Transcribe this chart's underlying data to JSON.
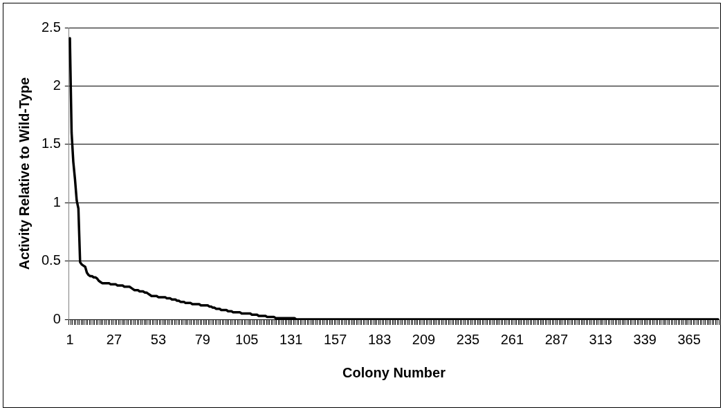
{
  "chart_data": {
    "type": "line",
    "xlabel": "Colony Number",
    "ylabel": "Activity Relative to Wild-Type",
    "ylim": [
      0,
      2.5
    ],
    "yticks": [
      0,
      0.5,
      1,
      1.5,
      2,
      2.5
    ],
    "grid": "y",
    "marker": "none",
    "line_style": "solid",
    "categories": [
      "1",
      null,
      null,
      null,
      null,
      null,
      null,
      null,
      null,
      null,
      null,
      null,
      null,
      null,
      null,
      null,
      null,
      null,
      null,
      null,
      null,
      null,
      null,
      null,
      null,
      null,
      "27",
      null,
      null,
      null,
      null,
      null,
      null,
      null,
      null,
      null,
      null,
      null,
      null,
      null,
      null,
      null,
      null,
      null,
      null,
      null,
      null,
      null,
      null,
      null,
      null,
      null,
      "53",
      null,
      null,
      null,
      null,
      null,
      null,
      null,
      null,
      null,
      null,
      null,
      null,
      null,
      null,
      null,
      null,
      null,
      null,
      null,
      null,
      null,
      null,
      null,
      null,
      null,
      "79",
      null,
      null,
      null,
      null,
      null,
      null,
      null,
      null,
      null,
      null,
      null,
      null,
      null,
      null,
      null,
      null,
      null,
      null,
      null,
      null,
      null,
      null,
      null,
      null,
      null,
      "105",
      null,
      null,
      null,
      null,
      null,
      null,
      null,
      null,
      null,
      null,
      null,
      null,
      null,
      null,
      null,
      null,
      null,
      null,
      null,
      null,
      null,
      null,
      null,
      null,
      null,
      "131",
      null,
      null,
      null,
      null,
      null,
      null,
      null,
      null,
      null,
      null,
      null,
      null,
      null,
      null,
      null,
      null,
      null,
      null,
      null,
      null,
      null,
      null,
      null,
      null,
      null,
      "157",
      null,
      null,
      null,
      null,
      null,
      null,
      null,
      null,
      null,
      null,
      null,
      null,
      null,
      null,
      null,
      null,
      null,
      null,
      null,
      null,
      null,
      null,
      null,
      null,
      null,
      "183",
      null,
      null,
      null,
      null,
      null,
      null,
      null,
      null,
      null,
      null,
      null,
      null,
      null,
      null,
      null,
      null,
      null,
      null,
      null,
      null,
      null,
      null,
      null,
      null,
      null,
      "209",
      null,
      null,
      null,
      null,
      null,
      null,
      null,
      null,
      null,
      null,
      null,
      null,
      null,
      null,
      null,
      null,
      null,
      null,
      null,
      null,
      null,
      null,
      null,
      null,
      null,
      "235",
      null,
      null,
      null,
      null,
      null,
      null,
      null,
      null,
      null,
      null,
      null,
      null,
      null,
      null,
      null,
      null,
      null,
      null,
      null,
      null,
      null,
      null,
      null,
      null,
      null,
      "261",
      null,
      null,
      null,
      null,
      null,
      null,
      null,
      null,
      null,
      null,
      null,
      null,
      null,
      null,
      null,
      null,
      null,
      null,
      null,
      null,
      null,
      null,
      null,
      null,
      null,
      "287",
      null,
      null,
      null,
      null,
      null,
      null,
      null,
      null,
      null,
      null,
      null,
      null,
      null,
      null,
      null,
      null,
      null,
      null,
      null,
      null,
      null,
      null,
      null,
      null,
      null,
      "313",
      null,
      null,
      null,
      null,
      null,
      null,
      null,
      null,
      null,
      null,
      null,
      null,
      null,
      null,
      null,
      null,
      null,
      null,
      null,
      null,
      null,
      null,
      null,
      null,
      null,
      "339",
      null,
      null,
      null,
      null,
      null,
      null,
      null,
      null,
      null,
      null,
      null,
      null,
      null,
      null,
      null,
      null,
      null,
      null,
      null,
      null,
      null,
      null,
      null,
      null,
      null,
      "365",
      null,
      null,
      null,
      null,
      null,
      null,
      null,
      null,
      null,
      null,
      null,
      null,
      null,
      null,
      null,
      null,
      null
    ],
    "series": [
      {
        "color": "#000000",
        "values": [
          2.41,
          1.6,
          1.35,
          1.2,
          1.02,
          0.95,
          0.49,
          0.47,
          0.46,
          0.45,
          0.4,
          0.38,
          0.37,
          0.37,
          0.36,
          0.36,
          0.35,
          0.33,
          0.32,
          0.31,
          0.31,
          0.31,
          0.31,
          0.31,
          0.3,
          0.3,
          0.3,
          0.3,
          0.29,
          0.29,
          0.29,
          0.29,
          0.28,
          0.28,
          0.28,
          0.28,
          0.27,
          0.26,
          0.25,
          0.25,
          0.25,
          0.24,
          0.24,
          0.24,
          0.23,
          0.23,
          0.22,
          0.21,
          0.2,
          0.2,
          0.2,
          0.2,
          0.19,
          0.19,
          0.19,
          0.19,
          0.19,
          0.18,
          0.18,
          0.18,
          0.17,
          0.17,
          0.17,
          0.16,
          0.16,
          0.15,
          0.15,
          0.15,
          0.14,
          0.14,
          0.14,
          0.14,
          0.13,
          0.13,
          0.13,
          0.13,
          0.13,
          0.12,
          0.12,
          0.12,
          0.12,
          0.12,
          0.11,
          0.11,
          0.1,
          0.1,
          0.09,
          0.09,
          0.09,
          0.08,
          0.08,
          0.08,
          0.08,
          0.07,
          0.07,
          0.07,
          0.06,
          0.06,
          0.06,
          0.06,
          0.06,
          0.05,
          0.05,
          0.05,
          0.05,
          0.05,
          0.05,
          0.04,
          0.04,
          0.04,
          0.04,
          0.03,
          0.03,
          0.03,
          0.03,
          0.03,
          0.02,
          0.02,
          0.02,
          0.02,
          0.02,
          0.01,
          0.01,
          0.01,
          0.01,
          0.01,
          0.01,
          0.01,
          0.01,
          0.01,
          0.01,
          0.01,
          0.01,
          0,
          0,
          0,
          0,
          0,
          0,
          0,
          0,
          0,
          0,
          0,
          0,
          0,
          0,
          0,
          0,
          0,
          0,
          0,
          0,
          0,
          0,
          0,
          0,
          0,
          0,
          0,
          0,
          0,
          0,
          0,
          0,
          0,
          0,
          0,
          0,
          0,
          0,
          0,
          0,
          0,
          0,
          0,
          0,
          0,
          0,
          0,
          0,
          0,
          0,
          0,
          0,
          0,
          0,
          0,
          0,
          0,
          0,
          0,
          0,
          0,
          0,
          0,
          0,
          0,
          0,
          0,
          0,
          0,
          0,
          0,
          0,
          0,
          0,
          0,
          0,
          0,
          0,
          0,
          0,
          0,
          0,
          0,
          0,
          0,
          0,
          0,
          0,
          0,
          0,
          0,
          0,
          0,
          0,
          0,
          0,
          0,
          0,
          0,
          0,
          0,
          0,
          0,
          0,
          0,
          0,
          0,
          0,
          0,
          0,
          0,
          0,
          0,
          0,
          0,
          0,
          0,
          0,
          0,
          0,
          0,
          0,
          0,
          0,
          0,
          0,
          0,
          0,
          0,
          0,
          0,
          0,
          0,
          0,
          0,
          0,
          0,
          0,
          0,
          0,
          0,
          0,
          0,
          0,
          0,
          0,
          0,
          0,
          0,
          0,
          0,
          0,
          0,
          0,
          0,
          0,
          0,
          0,
          0,
          0,
          0,
          0,
          0,
          0,
          0,
          0,
          0,
          0,
          0,
          0,
          0,
          0,
          0,
          0,
          0,
          0,
          0,
          0,
          0,
          0,
          0,
          0,
          0,
          0,
          0,
          0,
          0,
          0,
          0,
          0,
          0,
          0,
          0,
          0,
          0,
          0,
          0,
          0,
          0,
          0,
          0,
          0,
          0,
          0,
          0,
          0,
          0,
          0,
          0,
          0,
          0,
          0,
          0,
          0,
          0,
          0,
          0,
          0,
          0,
          0,
          0,
          0,
          0,
          0,
          0,
          0,
          0,
          0,
          0,
          0,
          0,
          0,
          0,
          0,
          0,
          0,
          0,
          0,
          0,
          0,
          0,
          0,
          0,
          0,
          0,
          0,
          0,
          0,
          0
        ]
      }
    ]
  }
}
